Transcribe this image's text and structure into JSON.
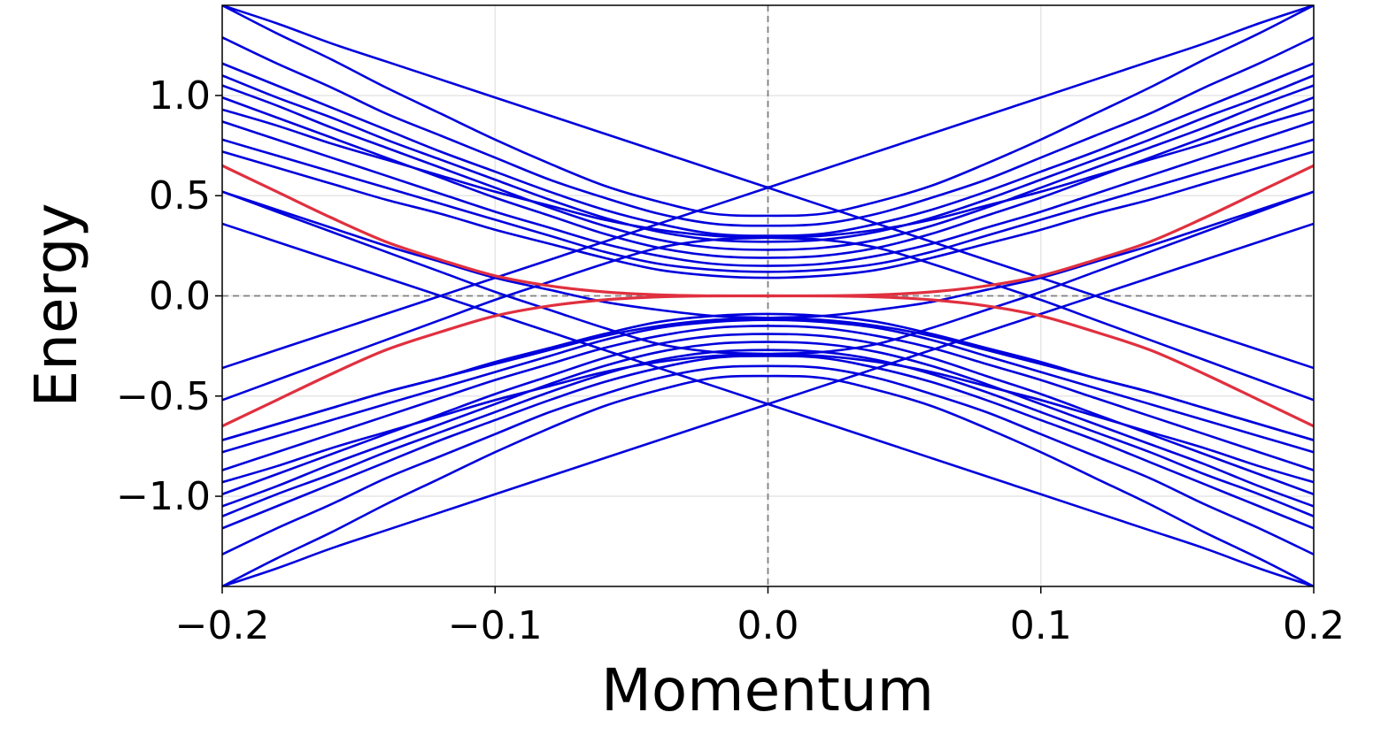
{
  "chart_data": {
    "type": "line",
    "title": "",
    "xlabel": "Momentum",
    "ylabel": "Energy",
    "xlim": [
      -0.2,
      0.2
    ],
    "ylim": [
      -1.45,
      1.45
    ],
    "x_ticks": [
      -0.2,
      -0.1,
      0.0,
      0.1,
      0.2
    ],
    "x_tick_labels": [
      "−0.2",
      "−0.1",
      "0.0",
      "0.1",
      "0.2"
    ],
    "y_ticks": [
      -1.0,
      -0.5,
      0.0,
      0.5,
      1.0
    ],
    "y_tick_labels": [
      "−1.0",
      "−0.5",
      "0.0",
      "0.5",
      "1.0"
    ],
    "grid": true,
    "reference_lines": {
      "x": 0.0,
      "y": 0.0,
      "style": "dashed",
      "color": "#808080"
    },
    "colors": {
      "bulk_bands": "#0000dd",
      "edge_bands": "#e0303f",
      "grid": "#e6e6e6",
      "frame": "#000000"
    },
    "x": [
      -0.2,
      -0.18,
      -0.16,
      -0.14,
      -0.12,
      -0.1,
      -0.08,
      -0.06,
      -0.04,
      -0.02,
      0.0,
      0.02,
      0.04,
      0.06,
      0.08,
      0.1,
      0.12,
      0.14,
      0.16,
      0.18,
      0.2
    ],
    "series": [
      {
        "group": "bulk",
        "values": [
          1.45,
          1.31,
          1.18,
          1.04,
          0.91,
          0.78,
          0.66,
          0.55,
          0.47,
          0.41,
          0.4,
          0.41,
          0.47,
          0.55,
          0.66,
          0.78,
          0.91,
          1.04,
          1.18,
          1.31,
          1.45
        ]
      },
      {
        "group": "bulk",
        "values": [
          1.29,
          1.16,
          1.04,
          0.91,
          0.8,
          0.69,
          0.58,
          0.49,
          0.41,
          0.36,
          0.35,
          0.36,
          0.41,
          0.49,
          0.58,
          0.69,
          0.8,
          0.91,
          1.04,
          1.16,
          1.29
        ]
      },
      {
        "group": "bulk",
        "values": [
          1.16,
          1.05,
          0.94,
          0.83,
          0.72,
          0.62,
          0.52,
          0.43,
          0.36,
          0.31,
          0.3,
          0.31,
          0.36,
          0.43,
          0.52,
          0.62,
          0.72,
          0.83,
          0.94,
          1.05,
          1.16
        ]
      },
      {
        "group": "bulk",
        "values": [
          1.1,
          0.99,
          0.89,
          0.78,
          0.68,
          0.58,
          0.48,
          0.39,
          0.32,
          0.28,
          0.27,
          0.28,
          0.32,
          0.39,
          0.48,
          0.58,
          0.68,
          0.78,
          0.89,
          0.99,
          1.1
        ]
      },
      {
        "group": "bulk",
        "values": [
          1.05,
          0.95,
          0.84,
          0.74,
          0.64,
          0.54,
          0.44,
          0.35,
          0.28,
          0.24,
          0.23,
          0.24,
          0.28,
          0.35,
          0.44,
          0.54,
          0.64,
          0.74,
          0.84,
          0.95,
          1.05
        ]
      },
      {
        "group": "bulk",
        "values": [
          0.99,
          0.89,
          0.79,
          0.69,
          0.59,
          0.49,
          0.4,
          0.31,
          0.24,
          0.2,
          0.19,
          0.2,
          0.24,
          0.31,
          0.4,
          0.49,
          0.59,
          0.69,
          0.79,
          0.89,
          0.99
        ]
      },
      {
        "group": "bulk",
        "values": [
          0.87,
          0.78,
          0.69,
          0.6,
          0.51,
          0.42,
          0.34,
          0.26,
          0.2,
          0.16,
          0.15,
          0.16,
          0.2,
          0.26,
          0.34,
          0.42,
          0.51,
          0.6,
          0.69,
          0.78,
          0.87
        ]
      },
      {
        "group": "bulk",
        "values": [
          0.78,
          0.7,
          0.62,
          0.54,
          0.46,
          0.38,
          0.3,
          0.22,
          0.16,
          0.13,
          0.12,
          0.13,
          0.16,
          0.22,
          0.3,
          0.38,
          0.46,
          0.54,
          0.62,
          0.7,
          0.78
        ]
      },
      {
        "group": "bulk",
        "values": [
          0.72,
          0.64,
          0.56,
          0.48,
          0.41,
          0.33,
          0.26,
          0.19,
          0.13,
          0.1,
          0.09,
          0.1,
          0.13,
          0.19,
          0.26,
          0.33,
          0.41,
          0.48,
          0.56,
          0.64,
          0.72
        ]
      },
      {
        "group": "bulk",
        "values": [
          -0.36,
          -0.27,
          -0.18,
          -0.09,
          0.0,
          0.09,
          0.18,
          0.27,
          0.36,
          0.45,
          0.54,
          0.63,
          0.72,
          0.81,
          0.9,
          0.99,
          1.08,
          1.17,
          1.26,
          1.36,
          1.45
        ]
      },
      {
        "group": "bulk",
        "values": [
          1.45,
          1.36,
          1.26,
          1.17,
          1.08,
          0.99,
          0.9,
          0.81,
          0.72,
          0.63,
          0.54,
          0.45,
          0.36,
          0.27,
          0.18,
          0.09,
          0.0,
          -0.09,
          -0.18,
          -0.27,
          -0.36
        ]
      },
      {
        "group": "bulk",
        "values": [
          -0.52,
          -0.42,
          -0.32,
          -0.22,
          -0.12,
          -0.02,
          0.07,
          0.16,
          0.24,
          0.28,
          0.29,
          0.3,
          0.33,
          0.38,
          0.45,
          0.52,
          0.6,
          0.68,
          0.76,
          0.85,
          0.93
        ]
      },
      {
        "group": "bulk",
        "values": [
          0.93,
          0.85,
          0.76,
          0.68,
          0.6,
          0.52,
          0.45,
          0.38,
          0.33,
          0.3,
          0.29,
          0.28,
          0.24,
          0.16,
          0.07,
          -0.02,
          -0.12,
          -0.22,
          -0.32,
          -0.42,
          -0.52
        ]
      },
      {
        "group": "bulk",
        "values": [
          0.52,
          0.43,
          0.34,
          0.25,
          0.17,
          0.09,
          0.03,
          -0.03,
          -0.07,
          -0.1,
          -0.11,
          -0.12,
          -0.15,
          -0.2,
          -0.27,
          -0.34,
          -0.41,
          -0.48,
          -0.56,
          -0.64,
          -0.72
        ]
      },
      {
        "group": "bulk",
        "values": [
          -0.72,
          -0.64,
          -0.56,
          -0.48,
          -0.41,
          -0.34,
          -0.27,
          -0.2,
          -0.15,
          -0.12,
          -0.11,
          -0.1,
          -0.07,
          -0.03,
          0.03,
          0.09,
          0.17,
          0.25,
          0.34,
          0.43,
          0.52
        ]
      },
      {
        "group": "bulk",
        "values": [
          0.36,
          0.27,
          0.18,
          0.09,
          0.0,
          -0.09,
          -0.18,
          -0.27,
          -0.36,
          -0.45,
          -0.54,
          -0.63,
          -0.72,
          -0.81,
          -0.9,
          -0.99,
          -1.08,
          -1.17,
          -1.26,
          -1.36,
          -1.45
        ]
      },
      {
        "group": "bulk",
        "values": [
          -1.45,
          -1.36,
          -1.26,
          -1.17,
          -1.08,
          -0.99,
          -0.9,
          -0.81,
          -0.72,
          -0.63,
          -0.54,
          -0.45,
          -0.36,
          -0.27,
          -0.18,
          -0.09,
          0.0,
          0.09,
          0.18,
          0.27,
          0.36
        ]
      },
      {
        "group": "bulk",
        "values": [
          0.52,
          0.42,
          0.32,
          0.22,
          0.12,
          0.02,
          -0.07,
          -0.16,
          -0.24,
          -0.28,
          -0.29,
          -0.3,
          -0.33,
          -0.38,
          -0.45,
          -0.52,
          -0.6,
          -0.68,
          -0.76,
          -0.85,
          -0.93
        ]
      },
      {
        "group": "bulk",
        "values": [
          -0.93,
          -0.85,
          -0.76,
          -0.68,
          -0.6,
          -0.52,
          -0.45,
          -0.38,
          -0.33,
          -0.3,
          -0.29,
          -0.28,
          -0.24,
          -0.16,
          -0.07,
          0.02,
          0.12,
          0.22,
          0.32,
          0.42,
          0.52
        ]
      },
      {
        "group": "bulk",
        "values": [
          -1.45,
          -1.31,
          -1.18,
          -1.04,
          -0.91,
          -0.78,
          -0.66,
          -0.55,
          -0.47,
          -0.41,
          -0.4,
          -0.41,
          -0.47,
          -0.55,
          -0.66,
          -0.78,
          -0.91,
          -1.04,
          -1.18,
          -1.31,
          -1.45
        ]
      },
      {
        "group": "bulk",
        "values": [
          -1.29,
          -1.16,
          -1.04,
          -0.91,
          -0.8,
          -0.69,
          -0.58,
          -0.49,
          -0.41,
          -0.36,
          -0.35,
          -0.36,
          -0.41,
          -0.49,
          -0.58,
          -0.69,
          -0.8,
          -0.91,
          -1.04,
          -1.16,
          -1.29
        ]
      },
      {
        "group": "bulk",
        "values": [
          -1.16,
          -1.05,
          -0.94,
          -0.83,
          -0.72,
          -0.62,
          -0.52,
          -0.43,
          -0.36,
          -0.31,
          -0.3,
          -0.31,
          -0.36,
          -0.43,
          -0.52,
          -0.62,
          -0.72,
          -0.83,
          -0.94,
          -1.05,
          -1.16
        ]
      },
      {
        "group": "bulk",
        "values": [
          -1.1,
          -0.99,
          -0.89,
          -0.78,
          -0.68,
          -0.58,
          -0.48,
          -0.39,
          -0.32,
          -0.28,
          -0.27,
          -0.28,
          -0.32,
          -0.39,
          -0.48,
          -0.58,
          -0.68,
          -0.78,
          -0.89,
          -0.99,
          -1.1
        ]
      },
      {
        "group": "bulk",
        "values": [
          -1.05,
          -0.95,
          -0.84,
          -0.74,
          -0.64,
          -0.54,
          -0.44,
          -0.35,
          -0.28,
          -0.24,
          -0.23,
          -0.24,
          -0.28,
          -0.35,
          -0.44,
          -0.54,
          -0.64,
          -0.74,
          -0.84,
          -0.95,
          -1.05
        ]
      },
      {
        "group": "bulk",
        "values": [
          -0.99,
          -0.89,
          -0.79,
          -0.69,
          -0.59,
          -0.49,
          -0.4,
          -0.31,
          -0.24,
          -0.2,
          -0.19,
          -0.2,
          -0.24,
          -0.31,
          -0.4,
          -0.49,
          -0.59,
          -0.69,
          -0.79,
          -0.89,
          -0.99
        ]
      },
      {
        "group": "bulk",
        "values": [
          -0.87,
          -0.78,
          -0.69,
          -0.6,
          -0.51,
          -0.42,
          -0.34,
          -0.26,
          -0.2,
          -0.16,
          -0.15,
          -0.16,
          -0.2,
          -0.26,
          -0.34,
          -0.42,
          -0.51,
          -0.6,
          -0.69,
          -0.78,
          -0.87
        ]
      },
      {
        "group": "bulk",
        "values": [
          -0.78,
          -0.7,
          -0.62,
          -0.54,
          -0.46,
          -0.38,
          -0.3,
          -0.22,
          -0.16,
          -0.13,
          -0.12,
          -0.13,
          -0.16,
          -0.22,
          -0.3,
          -0.38,
          -0.46,
          -0.54,
          -0.62,
          -0.7,
          -0.78
        ]
      },
      {
        "group": "bulk",
        "values": [
          -0.72,
          -0.64,
          -0.56,
          -0.48,
          -0.41,
          -0.33,
          -0.26,
          -0.19,
          -0.13,
          -0.1,
          -0.09,
          -0.1,
          -0.13,
          -0.19,
          -0.26,
          -0.33,
          -0.41,
          -0.48,
          -0.56,
          -0.64,
          -0.72
        ]
      },
      {
        "group": "edge",
        "values": [
          0.65,
          0.52,
          0.39,
          0.27,
          0.18,
          0.1,
          0.05,
          0.02,
          0.005,
          0.0,
          0.0,
          0.0,
          -0.005,
          -0.02,
          -0.05,
          -0.1,
          -0.18,
          -0.27,
          -0.39,
          -0.52,
          -0.65
        ]
      },
      {
        "group": "edge",
        "values": [
          -0.65,
          -0.52,
          -0.39,
          -0.27,
          -0.18,
          -0.1,
          -0.05,
          -0.02,
          -0.005,
          0.0,
          0.0,
          0.0,
          0.005,
          0.02,
          0.05,
          0.1,
          0.18,
          0.27,
          0.39,
          0.52,
          0.65
        ]
      }
    ]
  }
}
